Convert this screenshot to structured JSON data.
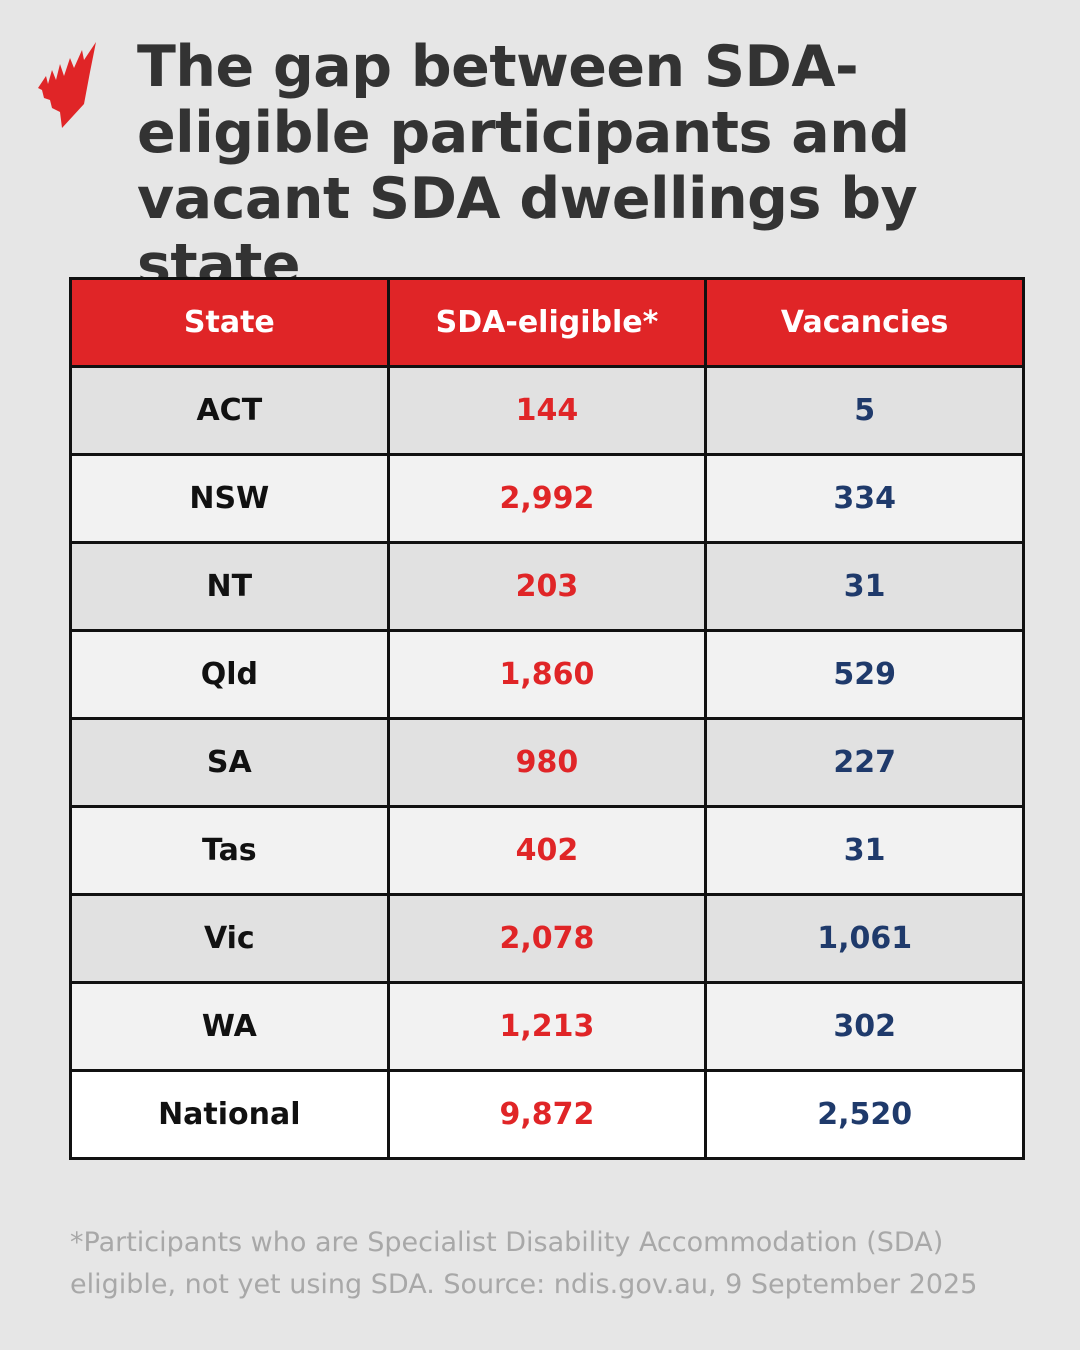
{
  "logo": {
    "name": "SBS",
    "icon": "sbs-mercator-logo",
    "color": "#e02527"
  },
  "title": "The gap between SDA-eligible participants and vacant SDA dwellings by state",
  "colors": {
    "header": "#e02527",
    "eligible": "#e02527",
    "vacancies": "#1f3a6b"
  },
  "chart_data": {
    "type": "table",
    "columns": [
      "State",
      "SDA-eligible*",
      "Vacancies"
    ],
    "rows": [
      {
        "state": "ACT",
        "eligible": "144",
        "vacancies": "5"
      },
      {
        "state": "NSW",
        "eligible": "2,992",
        "vacancies": "334"
      },
      {
        "state": "NT",
        "eligible": "203",
        "vacancies": "31"
      },
      {
        "state": "Qld",
        "eligible": "1,860",
        "vacancies": "529"
      },
      {
        "state": "SA",
        "eligible": "980",
        "vacancies": "227"
      },
      {
        "state": "Tas",
        "eligible": "402",
        "vacancies": "31"
      },
      {
        "state": "Vic",
        "eligible": "2,078",
        "vacancies": "1,061"
      },
      {
        "state": "WA",
        "eligible": "1,213",
        "vacancies": "302"
      },
      {
        "state": "National",
        "eligible": "9,872",
        "vacancies": "2,520"
      }
    ]
  },
  "footnote": "*Participants who are Specialist Disability Accommodation (SDA) eligible, not yet using SDA. Source: ndis.gov.au, 9 September 2025"
}
